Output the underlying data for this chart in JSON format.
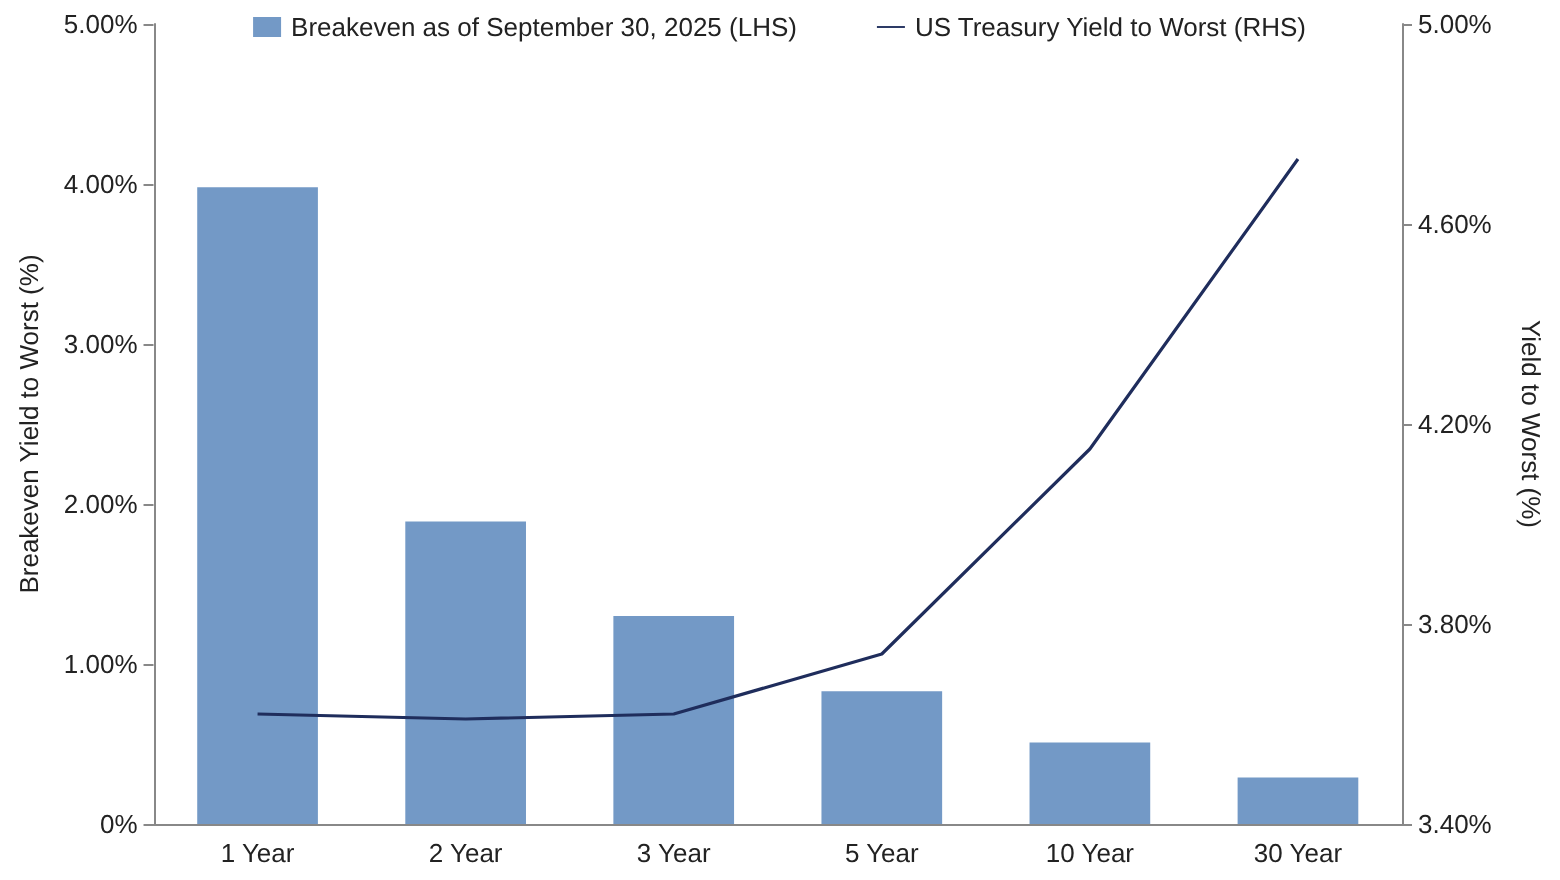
{
  "chart_data": {
    "type": "bar",
    "categories": [
      "1 Year",
      "2 Year",
      "3 Year",
      "5 Year",
      "10 Year",
      "30 Year"
    ],
    "ylabel": "Breakeven Yield to Worst (%)",
    "y2label": "Yield to Worst (%)",
    "series": [
      {
        "name": "Breakeven as of September 30, 2025 (LHS)",
        "color": "#7399c6",
        "values": [
          3.98,
          1.89,
          1.3,
          0.83,
          0.51,
          0.29
        ]
      },
      {
        "name": "US Treasury Yield to Worst (RHS)",
        "type": "line",
        "axis": "y2",
        "color": "#1f2d5c",
        "marker": "none",
        "values": [
          3.62,
          3.61,
          3.62,
          3.74,
          4.15,
          4.73
        ]
      }
    ],
    "ylim": [
      0,
      5
    ],
    "yticks": [
      {
        "value": 0,
        "label": "0%"
      },
      {
        "value": 1,
        "label": "1.00%"
      },
      {
        "value": 2,
        "label": "2.00%"
      },
      {
        "value": 3,
        "label": "3.00%"
      },
      {
        "value": 4,
        "label": "4.00%"
      },
      {
        "value": 5,
        "label": "5.00%"
      }
    ],
    "y2lim": [
      3.4,
      5
    ],
    "y2ticks": [
      {
        "value": 3.4,
        "label": "3.40%"
      },
      {
        "value": 3.8,
        "label": "3.80%"
      },
      {
        "value": 4.2,
        "label": "4.20%"
      },
      {
        "value": 4.6,
        "label": "4.60%"
      },
      {
        "value": 5,
        "label": "5.00%"
      }
    ],
    "grid": false,
    "legend": "top"
  }
}
